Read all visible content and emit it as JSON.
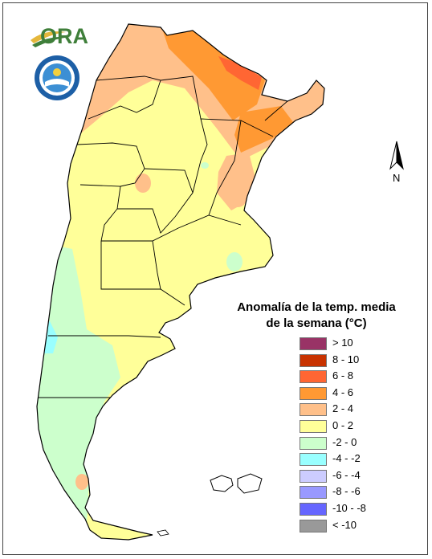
{
  "logos": {
    "ora_text": "ORA",
    "ora_icon": "leaf-swoosh-logo",
    "smn_icon": "servicio-meteorologico-nacional-seal"
  },
  "north_arrow": {
    "label": "N",
    "icon": "north-arrow-icon"
  },
  "legend": {
    "title_line1": "Anomalía de la temp. media",
    "title_line2": "de la semana (°C)",
    "items": [
      {
        "label": "> 10",
        "color": "#993366"
      },
      {
        "label": "8 - 10",
        "color": "#c83200"
      },
      {
        "label": "6 - 8",
        "color": "#ff6633"
      },
      {
        "label": "4 - 6",
        "color": "#ff9933"
      },
      {
        "label": "2 - 4",
        "color": "#ffc08a"
      },
      {
        "label": "0 - 2",
        "color": "#ffff99"
      },
      {
        "label": "-2 - 0",
        "color": "#ccffcc"
      },
      {
        "label": "-4 - -2",
        "color": "#99ffff"
      },
      {
        "label": "-6 - -4",
        "color": "#ccccff"
      },
      {
        "label": "-8 - -6",
        "color": "#9999ff"
      },
      {
        "label": "-10 - -8",
        "color": "#6666ff"
      },
      {
        "label": "< -10",
        "color": "#999999"
      }
    ]
  },
  "map": {
    "colors": {
      "warm_orange": "#ff9933",
      "warm_strong": "#ff6633",
      "light_orange": "#ffc08a",
      "yellow": "#ffff99",
      "green": "#ccffcc",
      "cyan": "#99ffff",
      "border": "#000000"
    }
  }
}
